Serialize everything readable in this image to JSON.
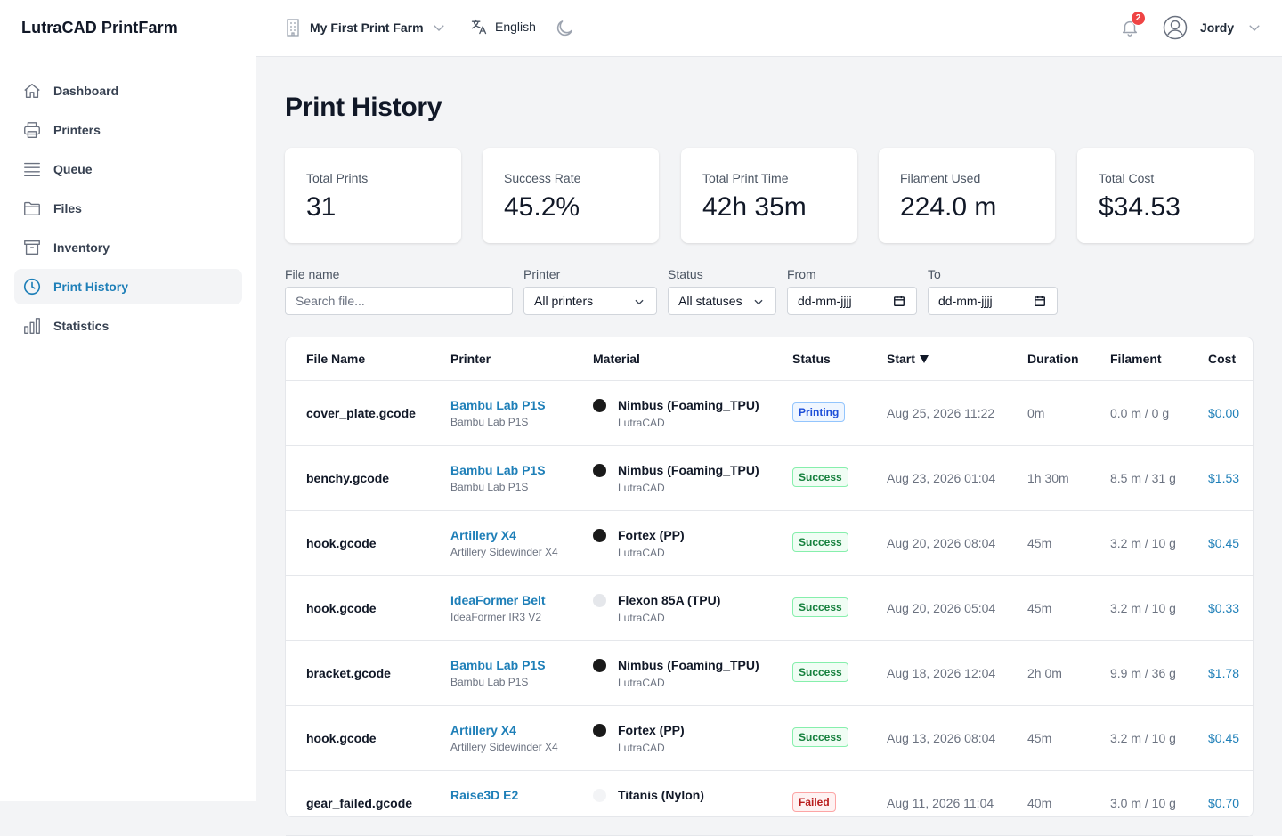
{
  "app": {
    "brand": "LutraCAD PrintFarm"
  },
  "sidebar": {
    "items": [
      {
        "label": "Dashboard",
        "icon": "home-icon",
        "active": false
      },
      {
        "label": "Printers",
        "icon": "printer-icon",
        "active": false
      },
      {
        "label": "Queue",
        "icon": "queue-icon",
        "active": false
      },
      {
        "label": "Files",
        "icon": "folder-icon",
        "active": false
      },
      {
        "label": "Inventory",
        "icon": "archive-icon",
        "active": false
      },
      {
        "label": "Print History",
        "icon": "clock-icon",
        "active": true
      },
      {
        "label": "Statistics",
        "icon": "bar-chart-icon",
        "active": false
      }
    ]
  },
  "topbar": {
    "farm": "My First Print Farm",
    "language": "English",
    "notifications": "2",
    "user": "Jordy"
  },
  "page": {
    "title": "Print History"
  },
  "stats": [
    {
      "label": "Total Prints",
      "value": "31"
    },
    {
      "label": "Success Rate",
      "value": "45.2%"
    },
    {
      "label": "Total Print Time",
      "value": "42h 35m"
    },
    {
      "label": "Filament Used",
      "value": "224.0 m"
    },
    {
      "label": "Total Cost",
      "value": "$34.53"
    }
  ],
  "filters": {
    "file_label": "File name",
    "file_placeholder": "Search file...",
    "printer_label": "Printer",
    "printer_value": "All printers",
    "status_label": "Status",
    "status_value": "All statuses",
    "from_label": "From",
    "from_value": "dd-mm-jjjj",
    "to_label": "To",
    "to_value": "dd-mm-jjjj"
  },
  "table": {
    "columns": {
      "file": "File Name",
      "printer": "Printer",
      "material": "Material",
      "status": "Status",
      "start": "Start",
      "duration": "Duration",
      "filament": "Filament",
      "cost": "Cost"
    },
    "rows": [
      {
        "file": "cover_plate.gcode",
        "printer": "Bambu Lab P1S",
        "model": "Bambu Lab P1S",
        "material": "Nimbus (Foaming_TPU)",
        "brand": "LutraCAD",
        "color": "#1a1a1a",
        "status": "Printing",
        "status_type": "printing",
        "start": "Aug 25, 2026 11:22",
        "duration": "0m",
        "filament": "0.0 m / 0 g",
        "cost": "$0.00"
      },
      {
        "file": "benchy.gcode",
        "printer": "Bambu Lab P1S",
        "model": "Bambu Lab P1S",
        "material": "Nimbus (Foaming_TPU)",
        "brand": "LutraCAD",
        "color": "#1a1a1a",
        "status": "Success",
        "status_type": "success",
        "start": "Aug 23, 2026 01:04",
        "duration": "1h 30m",
        "filament": "8.5 m / 31 g",
        "cost": "$1.53"
      },
      {
        "file": "hook.gcode",
        "printer": "Artillery X4",
        "model": "Artillery Sidewinder X4",
        "material": "Fortex (PP)",
        "brand": "LutraCAD",
        "color": "#1a1a1a",
        "status": "Success",
        "status_type": "success",
        "start": "Aug 20, 2026 08:04",
        "duration": "45m",
        "filament": "3.2 m / 10 g",
        "cost": "$0.45"
      },
      {
        "file": "hook.gcode",
        "printer": "IdeaFormer Belt",
        "model": "IdeaFormer IR3 V2",
        "material": "Flexon 85A (TPU)",
        "brand": "LutraCAD",
        "color": "#e5e7eb",
        "status": "Success",
        "status_type": "success",
        "start": "Aug 20, 2026 05:04",
        "duration": "45m",
        "filament": "3.2 m / 10 g",
        "cost": "$0.33"
      },
      {
        "file": "bracket.gcode",
        "printer": "Bambu Lab P1S",
        "model": "Bambu Lab P1S",
        "material": "Nimbus (Foaming_TPU)",
        "brand": "LutraCAD",
        "color": "#1a1a1a",
        "status": "Success",
        "status_type": "success",
        "start": "Aug 18, 2026 12:04",
        "duration": "2h 0m",
        "filament": "9.9 m / 36 g",
        "cost": "$1.78"
      },
      {
        "file": "hook.gcode",
        "printer": "Artillery X4",
        "model": "Artillery Sidewinder X4",
        "material": "Fortex (PP)",
        "brand": "LutraCAD",
        "color": "#1a1a1a",
        "status": "Success",
        "status_type": "success",
        "start": "Aug 13, 2026 08:04",
        "duration": "45m",
        "filament": "3.2 m / 10 g",
        "cost": "$0.45"
      },
      {
        "file": "gear_failed.gcode",
        "printer": "Raise3D E2",
        "model": "",
        "material": "Titanis (Nylon)",
        "brand": "",
        "color": "#f3f4f6",
        "status": "Failed",
        "status_type": "failed",
        "start": "Aug 11, 2026 11:04",
        "duration": "40m",
        "filament": "3.0 m / 10 g",
        "cost": "$0.70"
      }
    ]
  }
}
